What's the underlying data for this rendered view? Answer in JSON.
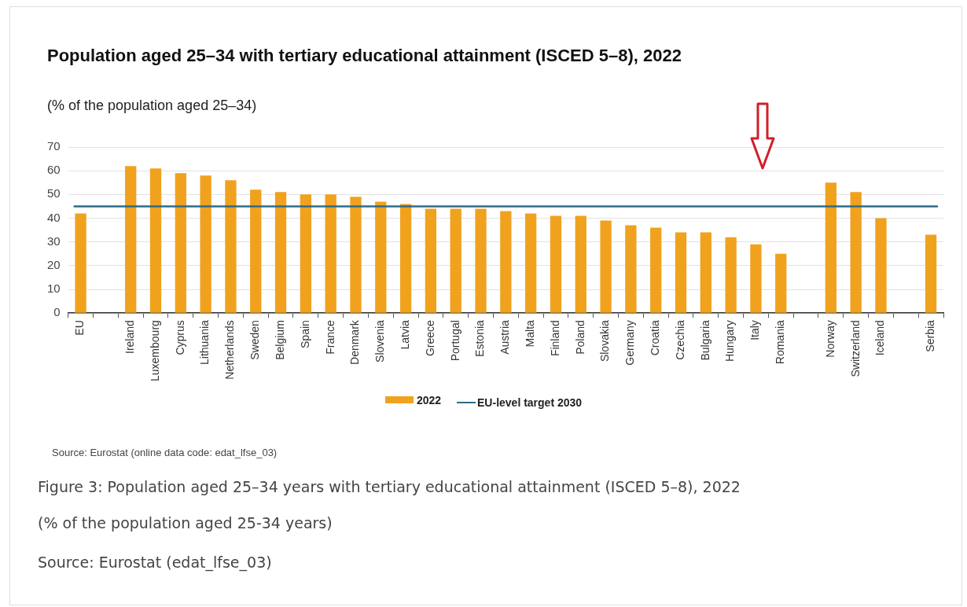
{
  "chart_data": {
    "type": "bar",
    "title": "Population aged 25–34 with tertiary educational attainment (ISCED 5–8), 2022",
    "subtitle": "(% of the population aged 25–34)",
    "categories": [
      "EU",
      null,
      "Ireland",
      "Luxembourg",
      "Cyprus",
      "Lithuania",
      "Netherlands",
      "Sweden",
      "Belgium",
      "Spain",
      "France",
      "Denmark",
      "Slovenia",
      "Latvia",
      "Greece",
      "Portugal",
      "Estonia",
      "Austria",
      "Malta",
      "Finland",
      "Poland",
      "Slovakia",
      "Germany",
      "Croatia",
      "Czechia",
      "Bulgaria",
      "Hungary",
      "Italy",
      "Romania",
      null,
      "Norway",
      "Switzerland",
      "Iceland",
      null,
      "Serbia"
    ],
    "series": [
      {
        "name": "2022",
        "color": "#f0a21e",
        "values": [
          42,
          null,
          62,
          61,
          59,
          58,
          56,
          52,
          51,
          50,
          50,
          49,
          47,
          46,
          44,
          44,
          44,
          43,
          42,
          41,
          41,
          39,
          37,
          36,
          34,
          34,
          32,
          29,
          25,
          null,
          55,
          51,
          40,
          null,
          33
        ]
      }
    ],
    "ref_lines": [
      {
        "axis": "y",
        "value": 45,
        "label": "EU-level target 2030",
        "color": "#2e6b8a"
      }
    ],
    "ylim": [
      0,
      70
    ],
    "yticks": [
      0,
      10,
      20,
      30,
      40,
      50,
      60,
      70
    ],
    "grid": "y",
    "legend": "bottom",
    "annotations": [
      "Source: Eurostat (online data code: edat_lfse_03)",
      "Figure 3: Population aged 25–34 years with tertiary educational attainment (ISCED 5–8), 2022",
      "(% of the population aged 25-34 years)",
      "Source: Eurostat (edat_lfse_03)"
    ]
  }
}
